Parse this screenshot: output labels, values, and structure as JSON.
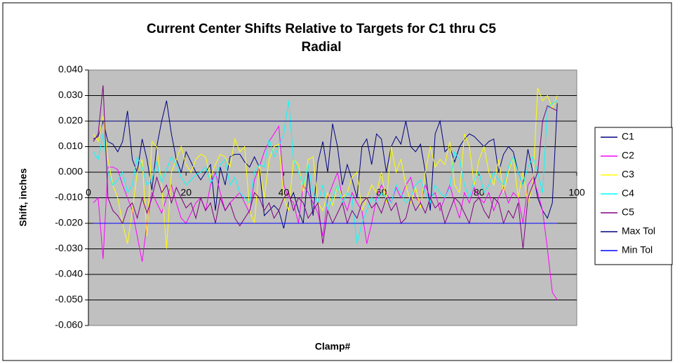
{
  "chart_data": {
    "type": "line",
    "title": "Current Center Shifts Relative to Targets for C1 thru C5",
    "subtitle": "Radial",
    "y_label": "Shift, inches",
    "x_label": "Clamp#",
    "xlim": [
      0,
      100
    ],
    "xticks": [
      0,
      20,
      40,
      60,
      80,
      100
    ],
    "ylim": [
      -0.06,
      0.04
    ],
    "yticks": [
      {
        "value": 0.04,
        "label": "0.040"
      },
      {
        "value": 0.03,
        "label": "0.030"
      },
      {
        "value": 0.02,
        "label": "0.020"
      },
      {
        "value": 0.01,
        "label": "0.010"
      },
      {
        "value": 0,
        "label": "0.000"
      },
      {
        "value": -0.01,
        "label": "-0.010"
      },
      {
        "value": -0.02,
        "label": "-0.020"
      },
      {
        "value": -0.03,
        "label": "-0.030"
      },
      {
        "value": -0.04,
        "label": "-0.040"
      },
      {
        "value": -0.05,
        "label": "-0.050"
      },
      {
        "value": -0.06,
        "label": "-0.060"
      }
    ],
    "grid": true,
    "legend": "right",
    "x": [
      1,
      2,
      3,
      4,
      5,
      6,
      7,
      8,
      9,
      10,
      11,
      12,
      13,
      14,
      15,
      16,
      17,
      18,
      19,
      20,
      21,
      22,
      23,
      24,
      25,
      26,
      27,
      28,
      29,
      30,
      31,
      32,
      33,
      34,
      35,
      36,
      37,
      38,
      39,
      40,
      41,
      42,
      43,
      44,
      45,
      46,
      47,
      48,
      49,
      50,
      51,
      52,
      53,
      54,
      55,
      56,
      57,
      58,
      59,
      60,
      61,
      62,
      63,
      64,
      65,
      66,
      67,
      68,
      69,
      70,
      71,
      72,
      73,
      74,
      75,
      76,
      77,
      78,
      79,
      80,
      81,
      82,
      83,
      84,
      85,
      86,
      87,
      88,
      89,
      90,
      91,
      92,
      93,
      94,
      95,
      96
    ],
    "series": [
      {
        "name": "C1",
        "color": "#000080",
        "values": [
          0.013,
          0.014,
          0.02,
          0.012,
          0.011,
          0.008,
          0.012,
          0.024,
          0.005,
          0.0,
          0.013,
          0.005,
          -0.007,
          0.01,
          0.02,
          0.028,
          0.015,
          0.005,
          0.0,
          0.008,
          0.004,
          0.0,
          -0.003,
          0.0,
          0.003,
          -0.015,
          0.002,
          -0.005,
          0.006,
          0.007,
          0.007,
          0.004,
          0.002,
          0.006,
          0.002,
          -0.017,
          -0.015,
          -0.013,
          -0.015,
          -0.022,
          -0.012,
          -0.008,
          -0.015,
          -0.02,
          0.0,
          -0.017,
          0.004,
          0.012,
          0.0,
          0.019,
          0.01,
          -0.005,
          0.003,
          -0.003,
          -0.01,
          0.01,
          0.013,
          0.003,
          0.015,
          0.013,
          0.0,
          0.01,
          0.014,
          0.011,
          0.02,
          0.01,
          0.008,
          0.011,
          0.0,
          -0.015,
          0.015,
          0.02,
          0.008,
          0.01,
          0.004,
          0.01,
          0.013,
          0.015,
          0.014,
          0.012,
          0.01,
          0.012,
          0.013,
          0.0,
          0.007,
          0.01,
          0.008,
          0.0,
          -0.005,
          0.009,
          0.0,
          -0.01,
          -0.015,
          -0.018,
          -0.012,
          0.027
        ]
      },
      {
        "name": "C2",
        "color": "#ff00ff",
        "values": [
          -0.012,
          -0.01,
          -0.034,
          0.002,
          0.002,
          0.001,
          -0.005,
          -0.01,
          -0.015,
          -0.025,
          -0.035,
          -0.02,
          -0.008,
          -0.012,
          -0.016,
          -0.01,
          -0.005,
          -0.012,
          -0.018,
          -0.02,
          -0.016,
          -0.012,
          -0.01,
          -0.015,
          -0.005,
          0.0,
          -0.008,
          -0.015,
          -0.012,
          -0.01,
          -0.008,
          -0.012,
          -0.016,
          -0.003,
          0.002,
          0.008,
          0.012,
          0.015,
          0.018,
          -0.005,
          -0.01,
          -0.012,
          -0.02,
          -0.005,
          -0.008,
          -0.012,
          -0.016,
          -0.025,
          -0.01,
          -0.005,
          0.0,
          -0.01,
          -0.015,
          -0.008,
          -0.012,
          -0.015,
          -0.028,
          -0.02,
          -0.01,
          -0.005,
          -0.008,
          -0.012,
          -0.006,
          -0.01,
          -0.005,
          -0.002,
          -0.01,
          -0.012,
          -0.005,
          -0.01,
          -0.008,
          -0.015,
          -0.01,
          -0.005,
          -0.012,
          -0.018,
          -0.008,
          -0.012,
          -0.006,
          -0.01,
          -0.012,
          -0.008,
          -0.015,
          -0.01,
          -0.006,
          -0.012,
          -0.008,
          -0.01,
          -0.02,
          -0.005,
          -0.002,
          -0.008,
          -0.015,
          -0.03,
          -0.047,
          -0.05
        ]
      },
      {
        "name": "C3",
        "color": "#ffff00",
        "values": [
          0.015,
          0.012,
          0.022,
          0.005,
          -0.005,
          -0.01,
          -0.02,
          -0.028,
          -0.015,
          0.0,
          0.005,
          -0.025,
          0.012,
          0.01,
          -0.005,
          -0.03,
          0.0,
          0.005,
          0.01,
          0.003,
          0.0,
          0.005,
          0.007,
          0.006,
          -0.002,
          0.003,
          0.007,
          0.006,
          0.002,
          0.013,
          0.008,
          0.01,
          -0.015,
          -0.02,
          0.003,
          -0.01,
          0.005,
          0.01,
          0.011,
          -0.01,
          -0.015,
          0.005,
          0.003,
          -0.008,
          0.005,
          0.006,
          -0.012,
          -0.015,
          -0.008,
          -0.013,
          -0.005,
          -0.01,
          -0.008,
          -0.002,
          0.0,
          -0.015,
          -0.01,
          -0.005,
          -0.008,
          0.0,
          -0.012,
          0.01,
          0.0,
          0.005,
          -0.005,
          -0.012,
          -0.006,
          -0.014,
          0.0,
          0.01,
          0.002,
          0.005,
          0.003,
          0.012,
          -0.005,
          -0.008,
          0.015,
          0.01,
          -0.005,
          0.005,
          0.01,
          0.0,
          -0.005,
          0.005,
          -0.008,
          0.0,
          0.006,
          -0.01,
          0.0,
          -0.012,
          -0.005,
          0.033,
          0.028,
          0.03,
          0.025,
          0.03
        ]
      },
      {
        "name": "C4",
        "color": "#00ffff",
        "values": [
          0.008,
          0.005,
          0.015,
          0.0,
          -0.005,
          -0.003,
          0.0,
          -0.008,
          -0.005,
          0.006,
          0.002,
          -0.005,
          -0.003,
          0.004,
          -0.004,
          0.001,
          0.006,
          0.003,
          -0.002,
          -0.005,
          -0.003,
          -0.001,
          0.0,
          0.002,
          -0.004,
          -0.002,
          0.003,
          0.005,
          -0.005,
          -0.002,
          -0.008,
          -0.01,
          -0.012,
          0.0,
          0.003,
          0.002,
          0.013,
          0.006,
          0.01,
          0.015,
          0.028,
          0.005,
          0.0,
          -0.005,
          0.003,
          -0.008,
          -0.012,
          -0.005,
          -0.015,
          -0.01,
          -0.005,
          -0.012,
          -0.008,
          -0.01,
          -0.028,
          -0.02,
          -0.015,
          -0.01,
          -0.012,
          -0.008,
          -0.01,
          -0.012,
          -0.005,
          -0.008,
          -0.012,
          -0.01,
          -0.005,
          -0.003,
          -0.008,
          -0.012,
          -0.005,
          -0.008,
          -0.01,
          -0.006,
          0.008,
          0.005,
          -0.005,
          -0.01,
          -0.003,
          0.0,
          -0.008,
          -0.005,
          0.0,
          -0.003,
          -0.005,
          0.002,
          0.006,
          0.0,
          -0.005,
          0.002,
          0.006,
          0.0,
          -0.008,
          0.025,
          0.027,
          0.028
        ]
      },
      {
        "name": "C5",
        "color": "#800080",
        "values": [
          0.012,
          0.015,
          0.034,
          -0.01,
          -0.015,
          -0.017,
          -0.02,
          -0.014,
          -0.012,
          -0.018,
          -0.01,
          -0.016,
          -0.01,
          -0.002,
          -0.008,
          -0.005,
          -0.012,
          -0.006,
          -0.01,
          -0.014,
          -0.012,
          -0.018,
          -0.01,
          -0.015,
          -0.012,
          -0.02,
          -0.01,
          -0.015,
          -0.012,
          -0.018,
          -0.021,
          -0.018,
          -0.015,
          -0.008,
          -0.01,
          -0.015,
          -0.012,
          -0.018,
          -0.015,
          -0.01,
          -0.008,
          -0.015,
          -0.01,
          -0.012,
          -0.018,
          -0.015,
          -0.012,
          -0.028,
          -0.015,
          -0.02,
          -0.016,
          -0.012,
          -0.02,
          -0.015,
          -0.018,
          -0.012,
          -0.01,
          -0.014,
          -0.012,
          -0.016,
          -0.01,
          -0.015,
          -0.012,
          -0.02,
          -0.018,
          -0.01,
          -0.015,
          -0.012,
          -0.016,
          -0.01,
          -0.014,
          -0.012,
          -0.02,
          -0.015,
          -0.01,
          -0.012,
          -0.016,
          -0.02,
          -0.012,
          -0.01,
          -0.015,
          -0.018,
          -0.01,
          -0.012,
          -0.02,
          -0.015,
          -0.018,
          -0.012,
          -0.03,
          -0.01,
          -0.005,
          0.0,
          0.02,
          0.026,
          0.025,
          0.024
        ]
      },
      {
        "name": "Max Tol",
        "color": "#000080",
        "values": [
          0.02,
          0.02,
          0.02,
          0.02,
          0.02,
          0.02,
          0.02,
          0.02,
          0.02,
          0.02,
          0.02,
          0.02,
          0.02,
          0.02,
          0.02,
          0.02,
          0.02,
          0.02,
          0.02,
          0.02,
          0.02,
          0.02,
          0.02,
          0.02,
          0.02,
          0.02,
          0.02,
          0.02,
          0.02,
          0.02,
          0.02,
          0.02,
          0.02,
          0.02,
          0.02,
          0.02,
          0.02,
          0.02,
          0.02,
          0.02,
          0.02,
          0.02,
          0.02,
          0.02,
          0.02,
          0.02,
          0.02,
          0.02,
          0.02,
          0.02,
          0.02,
          0.02,
          0.02,
          0.02,
          0.02,
          0.02,
          0.02,
          0.02,
          0.02,
          0.02,
          0.02,
          0.02,
          0.02,
          0.02,
          0.02,
          0.02,
          0.02,
          0.02,
          0.02,
          0.02,
          0.02,
          0.02,
          0.02,
          0.02,
          0.02,
          0.02,
          0.02,
          0.02,
          0.02,
          0.02,
          0.02,
          0.02,
          0.02,
          0.02,
          0.02,
          0.02,
          0.02,
          0.02,
          0.02,
          0.02,
          0.02,
          0.02,
          0.02,
          0.02,
          0.02,
          0.02
        ]
      },
      {
        "name": "Min Tol",
        "color": "#0000ff",
        "values": [
          -0.02,
          -0.02,
          -0.02,
          -0.02,
          -0.02,
          -0.02,
          -0.02,
          -0.02,
          -0.02,
          -0.02,
          -0.02,
          -0.02,
          -0.02,
          -0.02,
          -0.02,
          -0.02,
          -0.02,
          -0.02,
          -0.02,
          -0.02,
          -0.02,
          -0.02,
          -0.02,
          -0.02,
          -0.02,
          -0.02,
          -0.02,
          -0.02,
          -0.02,
          -0.02,
          -0.02,
          -0.02,
          -0.02,
          -0.02,
          -0.02,
          -0.02,
          -0.02,
          -0.02,
          -0.02,
          -0.02,
          -0.02,
          -0.02,
          -0.02,
          -0.02,
          -0.02,
          -0.02,
          -0.02,
          -0.02,
          -0.02,
          -0.02,
          -0.02,
          -0.02,
          -0.02,
          -0.02,
          -0.02,
          -0.02,
          -0.02,
          -0.02,
          -0.02,
          -0.02,
          -0.02,
          -0.02,
          -0.02,
          -0.02,
          -0.02,
          -0.02,
          -0.02,
          -0.02,
          -0.02,
          -0.02,
          -0.02,
          -0.02,
          -0.02,
          -0.02,
          -0.02,
          -0.02,
          -0.02,
          -0.02,
          -0.02,
          -0.02,
          -0.02,
          -0.02,
          -0.02,
          -0.02,
          -0.02,
          -0.02,
          -0.02,
          -0.02,
          -0.02,
          -0.02,
          -0.02,
          -0.02,
          -0.02,
          -0.02,
          -0.02,
          -0.02
        ]
      }
    ]
  }
}
